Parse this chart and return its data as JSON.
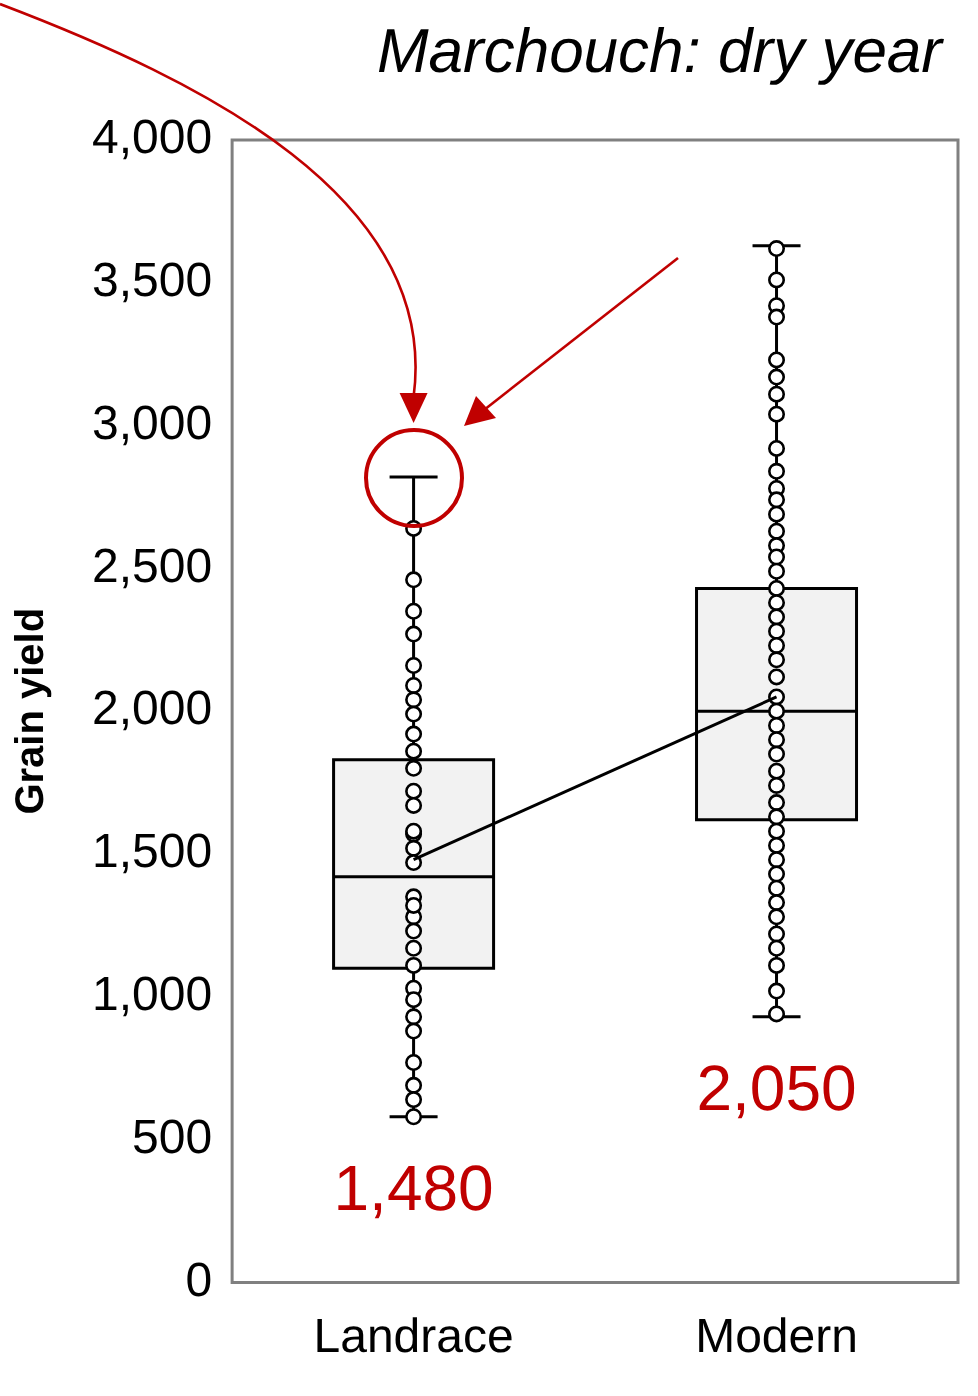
{
  "chart_data": {
    "type": "box",
    "title": "Marchouch: dry year",
    "ylabel": "Grain yield",
    "categories": [
      "Landrace",
      "Modern"
    ],
    "ylim": [
      0,
      4000
    ],
    "yticks": [
      0,
      500,
      {
        "value": 1000,
        "label": "1,000"
      },
      {
        "value": 1500,
        "label": "1,500"
      },
      {
        "value": 2000,
        "label": "2,000"
      },
      {
        "value": 2500,
        "label": "2,500"
      },
      {
        "value": 3000,
        "label": "3,000"
      },
      {
        "value": 3500,
        "label": "3,500"
      },
      {
        "value": 4000,
        "label": "4,000"
      }
    ],
    "grid": false,
    "series": [
      {
        "color": "#f2f2f2",
        "boxes": [
          {
            "low": 580,
            "q1": 1100,
            "median": 1420,
            "q3": 1830,
            "high": 2820
          },
          {
            "low": 930,
            "q1": 1620,
            "median": 2000,
            "q3": 2430,
            "high": 3630
          }
        ]
      },
      {
        "type": "scatter",
        "color": "#000000",
        "marker": "circle",
        "x": [
          "Landrace",
          "Landrace",
          "Landrace",
          "Landrace",
          "Landrace",
          "Landrace",
          "Landrace",
          "Landrace",
          "Landrace",
          "Landrace",
          "Landrace",
          "Landrace",
          "Landrace",
          "Landrace",
          "Landrace",
          "Landrace",
          "Landrace",
          "Landrace",
          "Landrace",
          "Landrace",
          "Landrace",
          "Landrace",
          "Landrace",
          "Landrace",
          "Landrace",
          "Landrace",
          "Landrace",
          "Landrace",
          "Landrace",
          "Landrace",
          "Landrace",
          "Modern",
          "Modern",
          "Modern",
          "Modern",
          "Modern",
          "Modern",
          "Modern",
          "Modern",
          "Modern",
          "Modern",
          "Modern",
          "Modern",
          "Modern",
          "Modern",
          "Modern",
          "Modern",
          "Modern",
          "Modern",
          "Modern",
          "Modern",
          "Modern",
          "Modern",
          "Modern",
          "Modern",
          "Modern",
          "Modern",
          "Modern",
          "Modern",
          "Modern",
          "Modern",
          "Modern",
          "Modern",
          "Modern",
          "Modern",
          "Modern",
          "Modern",
          "Modern",
          "Modern",
          "Modern",
          "Modern",
          "Modern",
          "Modern",
          "Modern",
          "Modern",
          "Modern"
        ],
        "values": [
          2640,
          2460,
          2350,
          2270,
          2160,
          2090,
          2040,
          1990,
          1920,
          1860,
          1800,
          1720,
          1670,
          1570,
          1520,
          1470,
          1350,
          1280,
          1230,
          1170,
          1110,
          1030,
          990,
          930,
          880,
          770,
          690,
          640,
          580,
          1580,
          1320,
          3620,
          3510,
          3420,
          3380,
          3230,
          3170,
          3110,
          3040,
          2920,
          2840,
          2780,
          2740,
          2690,
          2630,
          2580,
          2540,
          2490,
          2430,
          2380,
          2330,
          2280,
          2230,
          2180,
          2120,
          2050,
          2000,
          1950,
          1900,
          1850,
          1790,
          1740,
          1680,
          1630,
          1580,
          1530,
          1480,
          1430,
          1380,
          1330,
          1280,
          1220,
          1170,
          1110,
          1020,
          940
        ]
      },
      {
        "type": "line",
        "color": "#000000",
        "values": [
          1480,
          2050
        ]
      }
    ],
    "annotations": [
      "1,480",
      "2,050"
    ]
  }
}
